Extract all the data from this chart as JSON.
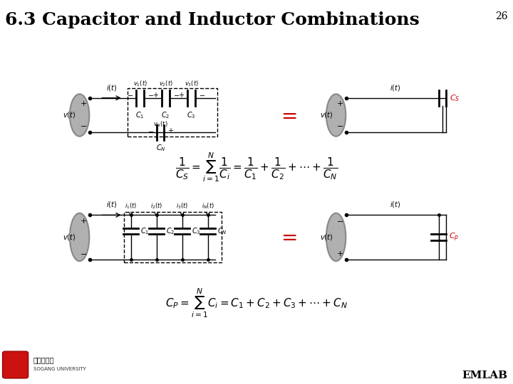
{
  "title": "6.3 Capacitor and Inductor Combinations",
  "slide_number": "26",
  "background_color": "#ffffff",
  "title_color": "#000000",
  "title_fontsize": 18,
  "emlab_text": "EMLAB",
  "formula1": "$\\frac{1}{C_S} = \\sum_{i=1}^{N}\\frac{1}{C_i} = \\frac{1}{C_1} + \\frac{1}{C_2} + \\cdots + \\frac{1}{C_N}$",
  "formula2": "$C_P = \\sum_{i=1}^{N}C_i = C_1 + C_2 + C_3 + \\cdots + C_N$"
}
